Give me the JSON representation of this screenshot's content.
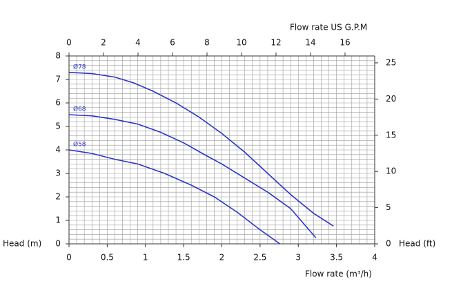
{
  "chart_data": {
    "type": "line",
    "xlabel": "Flow rate  (m³/h)",
    "ylabel": "Head (m)",
    "x2label": "Flow rate US  G.P.M",
    "y2label": "Head (ft)",
    "xlim": [
      0,
      4
    ],
    "xticks": [
      0,
      0.5,
      1,
      1.5,
      2,
      2.5,
      3,
      3.5,
      4
    ],
    "ylim": [
      0,
      8
    ],
    "yticks": [
      0,
      1,
      2,
      3,
      4,
      5,
      6,
      7,
      8
    ],
    "x2lim": [
      0,
      17.72
    ],
    "x2ticks": [
      0,
      2,
      4,
      6,
      8,
      10,
      12,
      14,
      16
    ],
    "y2lim": [
      0,
      25.95
    ],
    "y2ticks": [
      0,
      5,
      10,
      15,
      20,
      25
    ],
    "grid": true,
    "minor_grid": {
      "x": 0.1,
      "y": 0.2
    },
    "series": [
      {
        "name": "Ø78",
        "color": "#2a35c8",
        "x": [
          0,
          0.3,
          0.6,
          0.85,
          1.1,
          1.4,
          1.7,
          2.0,
          2.3,
          2.6,
          2.9,
          3.2,
          3.46
        ],
        "values": [
          7.3,
          7.25,
          7.1,
          6.85,
          6.5,
          6.0,
          5.4,
          4.7,
          3.9,
          3.0,
          2.1,
          1.3,
          0.76
        ]
      },
      {
        "name": "Ø68",
        "color": "#2a35c8",
        "x": [
          0,
          0.3,
          0.6,
          0.9,
          1.2,
          1.5,
          1.8,
          2.0,
          2.3,
          2.6,
          2.9,
          3.23
        ],
        "values": [
          5.5,
          5.45,
          5.3,
          5.1,
          4.75,
          4.3,
          3.75,
          3.4,
          2.8,
          2.2,
          1.5,
          0.26
        ]
      },
      {
        "name": "Ø58",
        "color": "#2a35c8",
        "x": [
          0,
          0.3,
          0.6,
          0.9,
          1.25,
          1.6,
          1.9,
          2.2,
          2.5,
          2.76
        ],
        "values": [
          4.0,
          3.85,
          3.6,
          3.4,
          3.0,
          2.5,
          2.0,
          1.35,
          0.6,
          0
        ]
      }
    ]
  }
}
